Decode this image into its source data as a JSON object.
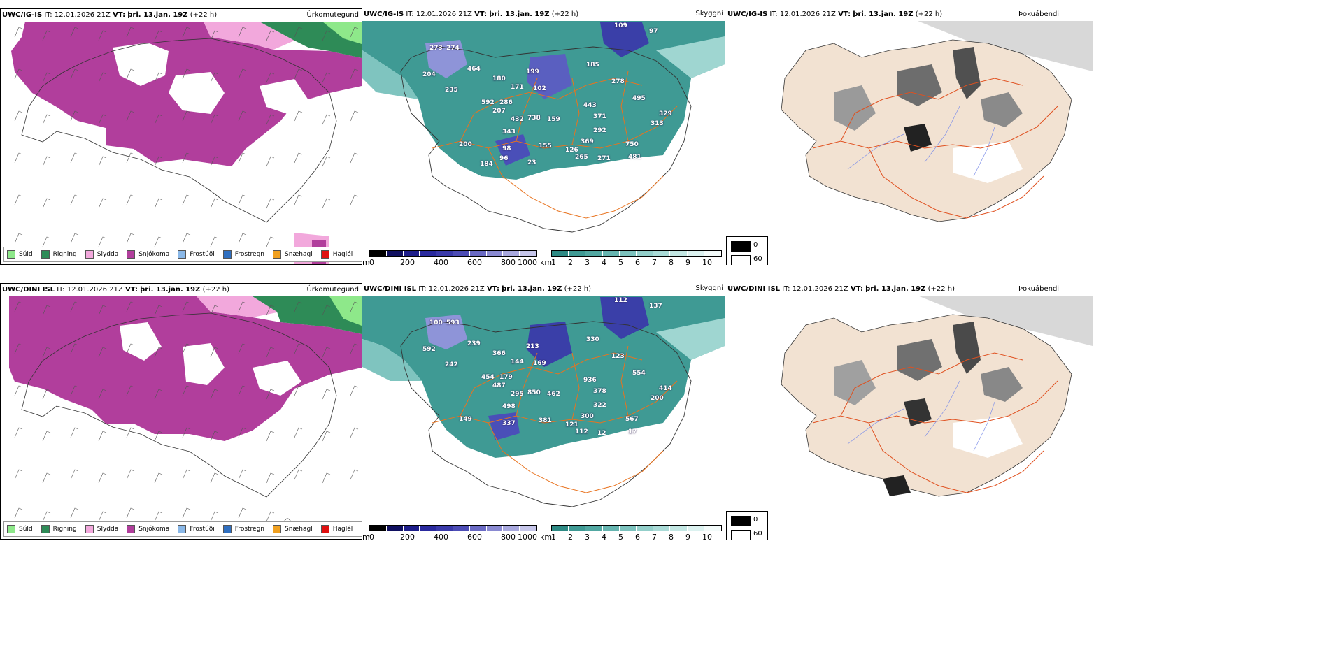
{
  "rows": [
    {
      "model": "UWC/IG-IS",
      "it_label": "IT:",
      "it_value": "12.01.2026 21Z",
      "vt_label": "VT:",
      "vt_value": "þri. 13.jan. 19Z",
      "lead": "(+22 h)",
      "vis_labels": [
        "109",
        "97",
        "273",
        "274",
        "464",
        "204",
        "235",
        "180",
        "199",
        "185",
        "171",
        "102",
        "278",
        "592",
        "286",
        "443",
        "495",
        "207",
        "432",
        "738",
        "159",
        "371",
        "329",
        "313",
        "292",
        "343",
        "369",
        "200",
        "98",
        "155",
        "750",
        "126",
        "265",
        "271",
        "481",
        "184",
        "96",
        "23"
      ]
    },
    {
      "model": "UWC/DINI ISL",
      "it_label": "IT:",
      "it_value": "12.01.2026 21Z",
      "vt_label": "VT:",
      "vt_value": "þri. 13.jan. 19Z",
      "lead": "(+22 h)",
      "vis_labels": [
        "112",
        "137",
        "100",
        "593",
        "239",
        "592",
        "242",
        "366",
        "213",
        "330",
        "144",
        "169",
        "123",
        "454",
        "179",
        "936",
        "554",
        "487",
        "295",
        "850",
        "462",
        "378",
        "414",
        "200",
        "322",
        "498",
        "300",
        "149",
        "337",
        "381",
        "567",
        "121",
        "112",
        "12",
        "17"
      ]
    }
  ],
  "panel_labels": {
    "precip": "Úrkomutegund",
    "vis": "Skyggni",
    "fog": "Þokuábendi"
  },
  "precip_legend": [
    {
      "label": "Súld",
      "color": "#8ee88a"
    },
    {
      "label": "Rigning",
      "color": "#2e8b57"
    },
    {
      "label": "Slydda",
      "color": "#f2a8dc"
    },
    {
      "label": "Snjókoma",
      "color": "#b13e9c"
    },
    {
      "label": "Frostúði",
      "color": "#8ab8e8"
    },
    {
      "label": "Frostregn",
      "color": "#2f6fc0"
    },
    {
      "label": "Snæhagl",
      "color": "#f0a020"
    },
    {
      "label": "Haglél",
      "color": "#e01010"
    }
  ],
  "colorbar_m": {
    "unit": "m",
    "ticks": [
      "0",
      "200",
      "400",
      "600",
      "800",
      "1000"
    ]
  },
  "colorbar_km": {
    "unit": "km",
    "ticks": [
      "1",
      "2",
      "3",
      "4",
      "5",
      "6",
      "7",
      "8",
      "9",
      "10"
    ]
  },
  "fog_key": {
    "high": "0",
    "low": "60"
  },
  "colors": {
    "snow": "#b13e9c",
    "rain": "#2e8b57",
    "drizzle": "#8ee88a",
    "sleet": "#f2a8dc",
    "teal": "#3f9a94",
    "fog_land": "#f2e2d2",
    "roads": "#e8731f"
  }
}
